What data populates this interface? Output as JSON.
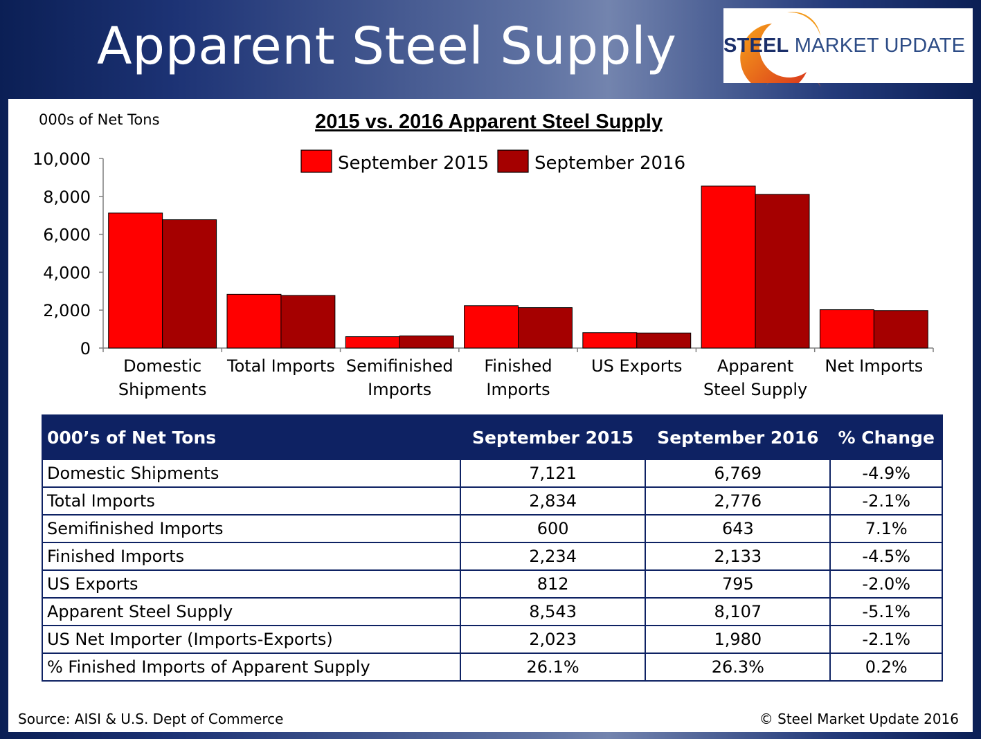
{
  "slide_title": "Apparent Steel Supply",
  "logo": {
    "word1": "STEEL",
    "word2": "MARKET UPDATE"
  },
  "chart_data": {
    "type": "bar",
    "title": "2015 vs. 2016 Apparent Steel Supply",
    "ylabel": "000s of Net Tons",
    "xlabel": "",
    "ylim": [
      0,
      10000
    ],
    "yticks": [
      "0",
      "2,000",
      "4,000",
      "6,000",
      "8,000",
      "10,000"
    ],
    "categories": [
      [
        "Domestic",
        "Shipments"
      ],
      [
        "Total Imports"
      ],
      [
        "Semifinished",
        "Imports"
      ],
      [
        "Finished",
        "Imports"
      ],
      [
        "US Exports"
      ],
      [
        "Apparent",
        "Steel Supply"
      ],
      [
        "Net Imports"
      ]
    ],
    "series": [
      {
        "name": "September 2015",
        "color": "#ff0000",
        "values": [
          7121,
          2834,
          600,
          2234,
          812,
          8543,
          2023
        ]
      },
      {
        "name": "September 2016",
        "color": "#a50000",
        "values": [
          6769,
          2776,
          643,
          2133,
          795,
          8107,
          1980
        ]
      }
    ],
    "legend": "top"
  },
  "table": {
    "headers": [
      "000’s of Net Tons",
      "September 2015",
      "September 2016",
      "% Change"
    ],
    "rows": [
      [
        "Domestic Shipments",
        "7,121",
        "6,769",
        "-4.9%"
      ],
      [
        "Total Imports",
        "2,834",
        "2,776",
        "-2.1%"
      ],
      [
        "Semifinished Imports",
        "600",
        "643",
        "7.1%"
      ],
      [
        "Finished Imports",
        "2,234",
        "2,133",
        "-4.5%"
      ],
      [
        "US Exports",
        "812",
        "795",
        "-2.0%"
      ],
      [
        "Apparent Steel Supply",
        "8,543",
        "8,107",
        "-5.1%"
      ],
      [
        "US Net Importer (Imports-Exports)",
        "2,023",
        "1,980",
        "-2.1%"
      ],
      [
        "% Finished Imports of Apparent Supply",
        "26.1%",
        "26.3%",
        "0.2%"
      ]
    ]
  },
  "footer": {
    "source": "Source:  AISI & U.S. Dept of Commerce",
    "copyright": "©    Steel Market Update 2016"
  }
}
